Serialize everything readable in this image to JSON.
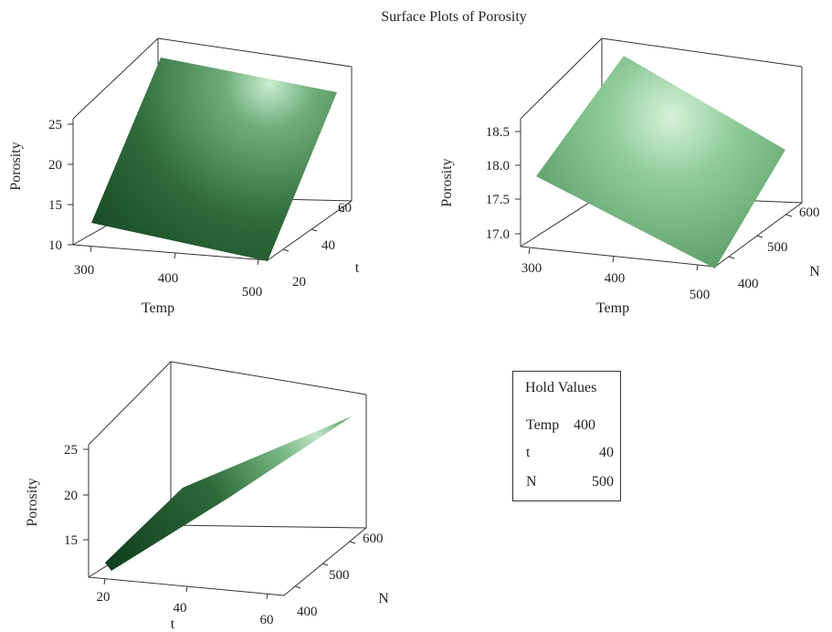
{
  "title": "Surface Plots of Porosity",
  "hold_values": {
    "title": "Hold Values",
    "items": [
      {
        "name": "Temp",
        "value": "400"
      },
      {
        "name": "t",
        "value": "40"
      },
      {
        "name": "N",
        "value": "500"
      }
    ]
  },
  "colors": {
    "surface_dark": "#0d3a1a",
    "surface_mid": "#2f6b3b",
    "surface_light": "#cdebd2",
    "axis": "#333333"
  },
  "chart_data": [
    {
      "type": "surface",
      "id": "temp-vs-t",
      "xlabel": "Temp",
      "ylabel": "t",
      "zlabel": "Porosity",
      "x_ticks": [
        "300",
        "400",
        "500"
      ],
      "y_ticks": [
        "20",
        "40",
        "60"
      ],
      "z_ticks": [
        "10",
        "15",
        "20",
        "25"
      ],
      "xlim": [
        290,
        510
      ],
      "ylim": [
        15,
        65
      ],
      "zlim": [
        10,
        27
      ],
      "surface_corners": [
        {
          "x": 300,
          "y": 20,
          "z": 13
        },
        {
          "x": 500,
          "y": 20,
          "z": 11.5
        },
        {
          "x": 500,
          "y": 60,
          "z": 26
        },
        {
          "x": 300,
          "y": 60,
          "z": 27
        }
      ]
    },
    {
      "type": "surface",
      "id": "temp-vs-n",
      "xlabel": "Temp",
      "ylabel": "N",
      "zlabel": "Porosity",
      "x_ticks": [
        "300",
        "400",
        "500"
      ],
      "y_ticks": [
        "400",
        "500",
        "600"
      ],
      "z_ticks": [
        "17.0",
        "17.5",
        "18.0",
        "18.5"
      ],
      "xlim": [
        290,
        510
      ],
      "ylim": [
        390,
        610
      ],
      "zlim": [
        16.8,
        18.9
      ],
      "surface_corners": [
        {
          "x": 300,
          "y": 400,
          "z": 17.95
        },
        {
          "x": 500,
          "y": 400,
          "z": 16.85
        },
        {
          "x": 500,
          "y": 600,
          "z": 17.75
        },
        {
          "x": 300,
          "y": 600,
          "z": 18.75
        }
      ]
    },
    {
      "type": "surface",
      "id": "t-vs-n",
      "xlabel": "t",
      "ylabel": "N",
      "zlabel": "Porosity",
      "x_ticks": [
        "20",
        "40",
        "60"
      ],
      "y_ticks": [
        "400",
        "500",
        "600"
      ],
      "z_ticks": [
        "15",
        "20",
        "25"
      ],
      "xlim": [
        15,
        65
      ],
      "ylim": [
        390,
        610
      ],
      "zlim": [
        11.5,
        27
      ],
      "surface_corners": [
        {
          "x": 20,
          "y": 400,
          "z": 12
        },
        {
          "x": 60,
          "y": 400,
          "z": 25
        },
        {
          "x": 60,
          "y": 600,
          "z": 27
        },
        {
          "x": 20,
          "y": 600,
          "z": 13
        }
      ]
    }
  ]
}
